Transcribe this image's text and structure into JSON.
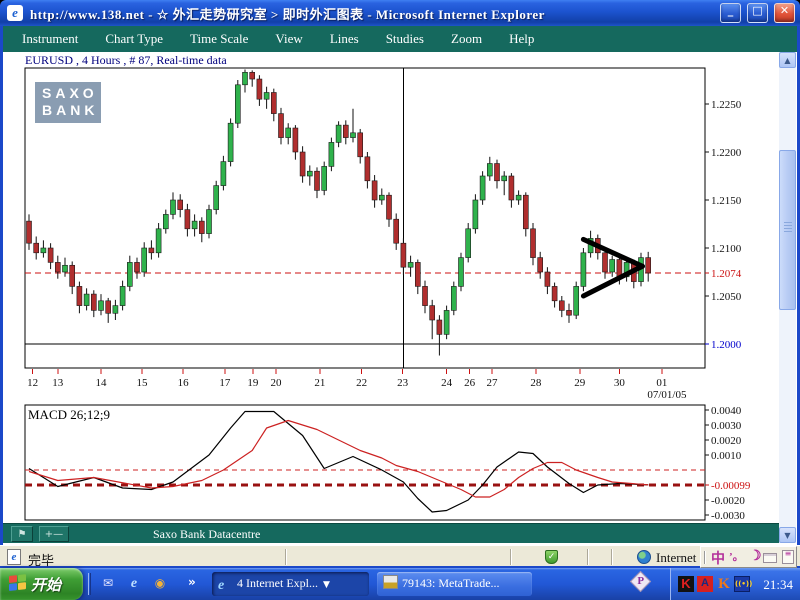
{
  "window": {
    "title": "http://www.138.net - ☆ 外汇走势研究室 > 即时外汇图表 - Microsoft Internet Explorer",
    "minimize": "_",
    "maximize": "□",
    "close": "✕"
  },
  "menu": {
    "items": [
      "Instrument",
      "Chart Type",
      "Time Scale",
      "View",
      "Lines",
      "Studies",
      "Zoom",
      "Help"
    ]
  },
  "logo": {
    "line1": "SAXO",
    "line2": "BANK"
  },
  "applet_status": {
    "text": "Saxo Bank Datacentre"
  },
  "ie_status": {
    "done": "完毕",
    "zone": "Internet"
  },
  "icons": {
    "ie_fav": "e",
    "page": "e",
    "shield": "✓",
    "chevron": "»",
    "ql_mail": "✉",
    "ql_ie": "e",
    "ql_media": "◉",
    "flag_tool": "⚑",
    "cross_tool": "+—",
    "ime_chinese": "中",
    "ime_punct": "’。",
    "ime_shape": "☽",
    "ime_menu": "≡",
    "tray_k1": "K",
    "tray_app": "A",
    "tray_k2": "K",
    "tray_sig": "((•))",
    "p_badge": "P",
    "caret_down": "▼",
    "scroll_up": "▲",
    "scroll_down": "▼"
  },
  "taskbar": {
    "start": "开始",
    "buttons": [
      {
        "label": "4 Internet Expl..."
      },
      {
        "label": "79143: MetaTrade..."
      }
    ],
    "clock": "21:34"
  },
  "chart_data": [
    {
      "type": "candlestick",
      "title": "EURUSD , 4 Hours , # 87, Real-time data",
      "bars": 87,
      "up_color": "#2fb24c",
      "down_color": "#b02e2e",
      "ohlc_x10000": [
        [
          12128,
          12135,
          12098,
          12105
        ],
        [
          12105,
          12112,
          12088,
          12095
        ],
        [
          12095,
          12108,
          12090,
          12100
        ],
        [
          12100,
          12105,
          12078,
          12085
        ],
        [
          12085,
          12092,
          12068,
          12075
        ],
        [
          12075,
          12090,
          12070,
          12082
        ],
        [
          12082,
          12086,
          12052,
          12060
        ],
        [
          12060,
          12065,
          12032,
          12040
        ],
        [
          12040,
          12058,
          12035,
          12052
        ],
        [
          12052,
          12056,
          12028,
          12035
        ],
        [
          12035,
          12052,
          12030,
          12045
        ],
        [
          12045,
          12048,
          12022,
          12032
        ],
        [
          12032,
          12046,
          12025,
          12040
        ],
        [
          12040,
          12066,
          12035,
          12060
        ],
        [
          12060,
          12092,
          12055,
          12085
        ],
        [
          12085,
          12090,
          12068,
          12075
        ],
        [
          12075,
          12106,
          12070,
          12100
        ],
        [
          12100,
          12108,
          12088,
          12095
        ],
        [
          12095,
          12126,
          12090,
          12120
        ],
        [
          12120,
          12140,
          12115,
          12135
        ],
        [
          12135,
          12158,
          12130,
          12150
        ],
        [
          12150,
          12156,
          12132,
          12140
        ],
        [
          12140,
          12146,
          12112,
          12120
        ],
        [
          12120,
          12135,
          12112,
          12128
        ],
        [
          12128,
          12132,
          12106,
          12115
        ],
        [
          12115,
          12145,
          12110,
          12140
        ],
        [
          12140,
          12170,
          12135,
          12165
        ],
        [
          12165,
          12196,
          12160,
          12190
        ],
        [
          12190,
          12235,
          12185,
          12230
        ],
        [
          12230,
          12275,
          12225,
          12270
        ],
        [
          12270,
          12286,
          12262,
          12283
        ],
        [
          12283,
          12285,
          12268,
          12276
        ],
        [
          12276,
          12280,
          12248,
          12255
        ],
        [
          12255,
          12268,
          12245,
          12262
        ],
        [
          12262,
          12266,
          12232,
          12240
        ],
        [
          12240,
          12246,
          12208,
          12215
        ],
        [
          12215,
          12230,
          12208,
          12225
        ],
        [
          12225,
          12228,
          12192,
          12200
        ],
        [
          12200,
          12206,
          12168,
          12175
        ],
        [
          12175,
          12186,
          12165,
          12180
        ],
        [
          12180,
          12184,
          12152,
          12160
        ],
        [
          12160,
          12190,
          12155,
          12185
        ],
        [
          12185,
          12215,
          12180,
          12210
        ],
        [
          12210,
          12232,
          12205,
          12228
        ],
        [
          12228,
          12233,
          12208,
          12215
        ],
        [
          12215,
          12245,
          12210,
          12220
        ],
        [
          12220,
          12224,
          12188,
          12195
        ],
        [
          12195,
          12200,
          12162,
          12170
        ],
        [
          12170,
          12176,
          12142,
          12150
        ],
        [
          12150,
          12162,
          12145,
          12155
        ],
        [
          12155,
          12158,
          12122,
          12130
        ],
        [
          12130,
          12136,
          12098,
          12105
        ],
        [
          12105,
          12110,
          12072,
          12080
        ],
        [
          12080,
          12092,
          12070,
          12085
        ],
        [
          12085,
          12088,
          12052,
          12060
        ],
        [
          12060,
          12066,
          12032,
          12040
        ],
        [
          12040,
          12046,
          12005,
          12025
        ],
        [
          12025,
          12030,
          11988,
          12010
        ],
        [
          12010,
          12040,
          12005,
          12035
        ],
        [
          12035,
          12065,
          12030,
          12060
        ],
        [
          12060,
          12095,
          12055,
          12090
        ],
        [
          12090,
          12126,
          12085,
          12120
        ],
        [
          12120,
          12156,
          12115,
          12150
        ],
        [
          12150,
          12180,
          12145,
          12175
        ],
        [
          12175,
          12195,
          12170,
          12188
        ],
        [
          12188,
          12192,
          12162,
          12170
        ],
        [
          12170,
          12180,
          12155,
          12175
        ],
        [
          12175,
          12178,
          12142,
          12150
        ],
        [
          12150,
          12160,
          12145,
          12155
        ],
        [
          12155,
          12158,
          12112,
          12120
        ],
        [
          12120,
          12126,
          12082,
          12090
        ],
        [
          12090,
          12096,
          12068,
          12075
        ],
        [
          12075,
          12080,
          12052,
          12060
        ],
        [
          12060,
          12064,
          12038,
          12045
        ],
        [
          12045,
          12050,
          12028,
          12035
        ],
        [
          12035,
          12042,
          12022,
          12030
        ],
        [
          12030,
          12065,
          12026,
          12060
        ],
        [
          12060,
          12100,
          12055,
          12095
        ],
        [
          12095,
          12118,
          12090,
          12110
        ],
        [
          12110,
          12114,
          12088,
          12095
        ],
        [
          12095,
          12100,
          12068,
          12075
        ],
        [
          12075,
          12092,
          12070,
          12088
        ],
        [
          12088,
          12092,
          12062,
          12070
        ],
        [
          12070,
          12090,
          12065,
          12085
        ],
        [
          12085,
          12088,
          12058,
          12065
        ],
        [
          12065,
          12095,
          12060,
          12090
        ],
        [
          12090,
          12096,
          12065,
          12074
        ]
      ],
      "y_axis": [
        {
          "label": "1.2250",
          "v": 1.225,
          "color": "#111111"
        },
        {
          "label": "1.2200",
          "v": 1.22,
          "color": "#111111"
        },
        {
          "label": "1.2150",
          "v": 1.215,
          "color": "#111111"
        },
        {
          "label": "1.2100",
          "v": 1.21,
          "color": "#111111"
        },
        {
          "label": "1.2074",
          "v": 1.2074,
          "color": "#cc1111"
        },
        {
          "label": "1.2050",
          "v": 1.205,
          "color": "#111111"
        },
        {
          "label": "1.2000",
          "v": 1.2,
          "color": "#0000cc"
        }
      ],
      "x_axis": [
        {
          "label": "12",
          "bar": 0.5
        },
        {
          "label": "13",
          "bar": 4
        },
        {
          "label": "14",
          "bar": 10
        },
        {
          "label": "15",
          "bar": 15.7
        },
        {
          "label": "16",
          "bar": 21.4
        },
        {
          "label": "17",
          "bar": 27.2
        },
        {
          "label": "19",
          "bar": 31.1
        },
        {
          "label": "20",
          "bar": 34.3
        },
        {
          "label": "21",
          "bar": 40.4
        },
        {
          "label": "22",
          "bar": 46.2
        },
        {
          "label": "23",
          "bar": 51.9
        },
        {
          "label": "24",
          "bar": 58
        },
        {
          "label": "26",
          "bar": 61.2
        },
        {
          "label": "27",
          "bar": 64.3
        },
        {
          "label": "28",
          "bar": 70.4
        },
        {
          "label": "29",
          "bar": 76.5
        },
        {
          "label": "30",
          "bar": 82
        },
        {
          "label": "01",
          "bar": 87.9
        },
        {
          "label": "07/01/05",
          "bar": 88.6,
          "line2": true
        }
      ],
      "levels": [
        {
          "v": 1.2074,
          "color": "#cc1111",
          "style": "dashed",
          "width": 1
        },
        {
          "v": 1.2,
          "color": "#000000",
          "style": "solid",
          "width": 1
        }
      ],
      "vline": {
        "bar": 52,
        "color": "#000000"
      },
      "triangle": {
        "from_bar": 77,
        "apex_bar": 85.2,
        "top": 1.2109,
        "bottom": 1.205,
        "apex": 1.2081,
        "color": "#000000",
        "width": 5
      }
    },
    {
      "type": "line",
      "title": "MACD 26;12;9",
      "series": [
        {
          "name": "MACD",
          "color": "#000000",
          "points": [
            [
              0,
              0.0001
            ],
            [
              4,
              -0.0011
            ],
            [
              9,
              -0.0005
            ],
            [
              13,
              -0.0012
            ],
            [
              17,
              -0.0013
            ],
            [
              20,
              -0.0008
            ],
            [
              25,
              0.001
            ],
            [
              28,
              0.0028
            ],
            [
              30,
              0.0039
            ],
            [
              34,
              0.0039
            ],
            [
              38,
              0.0023
            ],
            [
              41,
              0.0001
            ],
            [
              45,
              0.0009
            ],
            [
              49,
              0.0
            ],
            [
              52,
              -0.0008
            ],
            [
              54,
              -0.0019
            ],
            [
              56,
              -0.0028
            ],
            [
              58,
              -0.0027
            ],
            [
              61,
              -0.002
            ],
            [
              63,
              -0.001
            ],
            [
              65,
              0.0002
            ],
            [
              68,
              0.0012
            ],
            [
              70,
              0.0011
            ],
            [
              72,
              0.0002
            ],
            [
              75,
              -0.0009
            ],
            [
              77,
              -0.0015
            ],
            [
              79,
              -0.001
            ],
            [
              82,
              -0.0009
            ],
            [
              86,
              -0.00099
            ]
          ]
        },
        {
          "name": "Signal",
          "color": "#cc2222",
          "points": [
            [
              0,
              -0.0001
            ],
            [
              4,
              -0.0007
            ],
            [
              9,
              -0.0005
            ],
            [
              17,
              -0.0012
            ],
            [
              20,
              -0.0011
            ],
            [
              24,
              -0.0007
            ],
            [
              27,
              0.0
            ],
            [
              31,
              0.0013
            ],
            [
              33,
              0.0028
            ],
            [
              36,
              0.0033
            ],
            [
              38,
              0.003
            ],
            [
              40,
              0.0027
            ],
            [
              43,
              0.002
            ],
            [
              46,
              0.0013
            ],
            [
              49,
              0.0008
            ],
            [
              51,
              0.0003
            ],
            [
              54,
              -0.0001
            ],
            [
              57,
              -0.0007
            ],
            [
              60,
              -0.0013
            ],
            [
              62,
              -0.0018
            ],
            [
              64,
              -0.0018
            ],
            [
              66,
              -0.0013
            ],
            [
              68,
              -0.0005
            ],
            [
              70,
              0.0001
            ],
            [
              72,
              0.0005
            ],
            [
              74,
              0.0005
            ],
            [
              76,
              0.0
            ],
            [
              79,
              -0.0005
            ],
            [
              81,
              -0.0008
            ],
            [
              86,
              -0.00099
            ]
          ]
        }
      ],
      "y_axis": [
        {
          "label": "0.0040",
          "v": 0.004,
          "color": "#111111"
        },
        {
          "label": "0.0030",
          "v": 0.003,
          "color": "#111111"
        },
        {
          "label": "0.0020",
          "v": 0.002,
          "color": "#111111"
        },
        {
          "label": "0.0010",
          "v": 0.001,
          "color": "#111111"
        },
        {
          "label": "-0.00099",
          "v": -0.00099,
          "color": "#cc1111"
        },
        {
          "label": "-0.0020",
          "v": -0.002,
          "color": "#111111"
        },
        {
          "label": "-0.0030",
          "v": -0.003,
          "color": "#111111"
        }
      ],
      "levels": [
        {
          "v": 0.0,
          "color": "#cc2222",
          "style": "dashed",
          "width": 1
        },
        {
          "v": -0.00099,
          "color": "#991111",
          "style": "dashed",
          "width": 3
        }
      ]
    }
  ]
}
